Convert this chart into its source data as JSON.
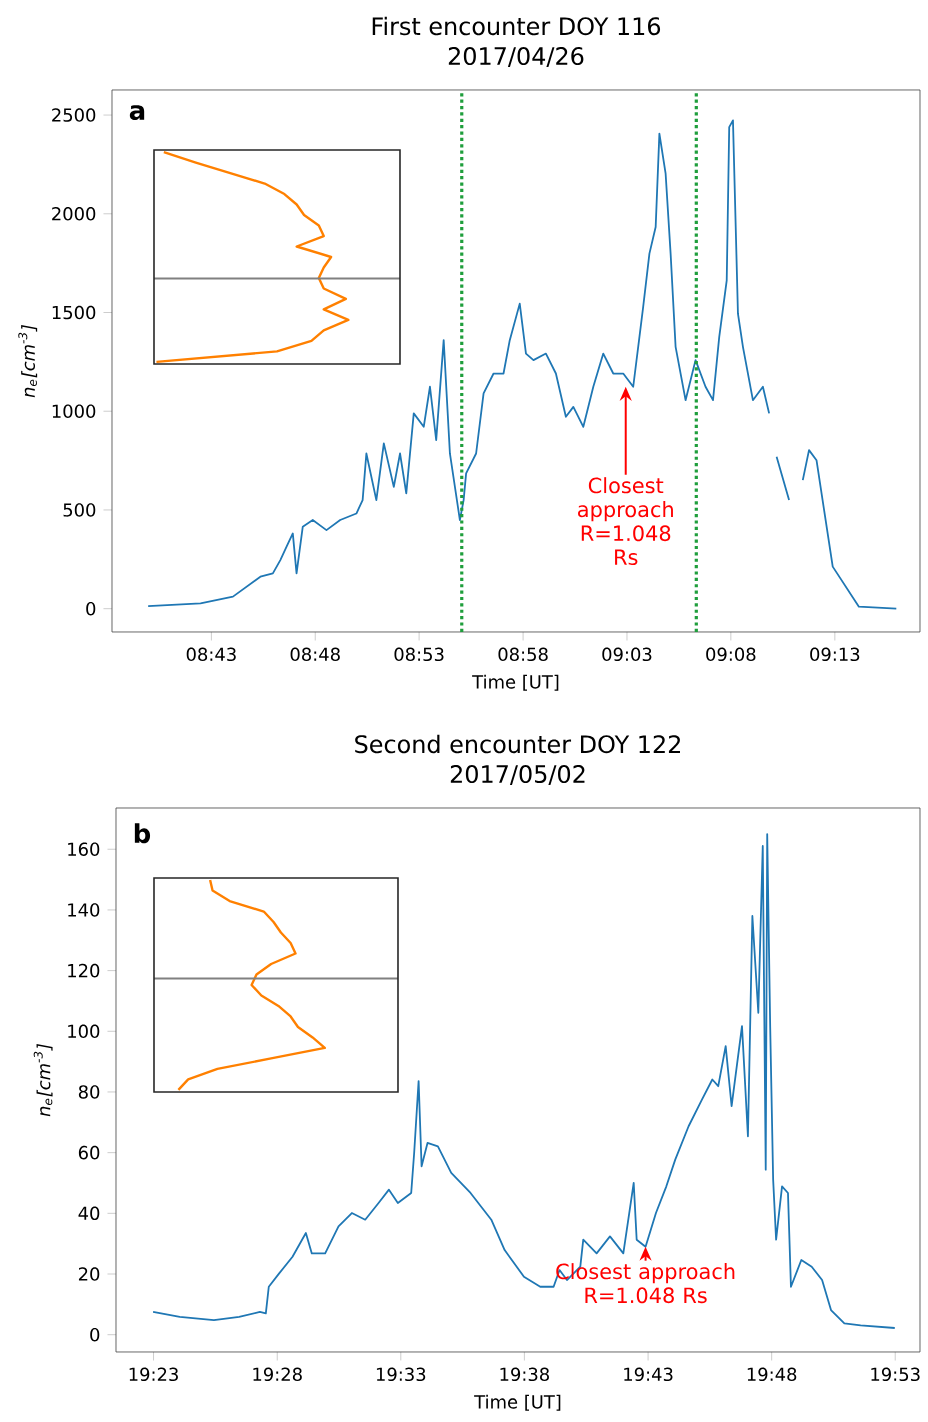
{
  "chart_data": [
    {
      "type": "line",
      "title": "First encounter DOY 116",
      "subtitle": "2017/04/26",
      "xlabel": "Time [UT]",
      "ylabel": "n$_{e}$[cm$^{-3}$]",
      "color": "#1f77b4",
      "annotations": [
        "a",
        {
          "text": "Closest approach R=1.048 Rs",
          "x": 9.049,
          "y": 1124
        }
      ],
      "x": [
        8.666,
        8.708,
        8.734,
        8.756,
        8.766,
        8.772,
        8.777,
        8.782,
        8.785,
        8.79,
        8.798,
        8.809,
        8.82,
        8.833,
        8.838,
        8.841,
        8.849,
        8.855,
        8.863,
        8.868,
        8.873,
        8.879,
        8.887,
        8.892,
        8.897,
        8.903,
        8.908,
        8.916,
        8.919,
        8.921,
        8.929,
        8.935,
        8.943,
        8.951,
        8.956,
        8.964,
        8.969,
        8.975,
        8.985,
        8.993,
        9.001,
        9.007,
        9.015,
        9.023,
        9.031,
        9.039,
        9.047,
        9.055,
        9.059,
        9.063,
        9.068,
        9.073,
        9.076,
        9.081,
        9.085,
        9.089,
        9.097,
        9.105,
        9.113,
        9.119,
        9.124,
        9.13,
        9.132,
        9.135,
        9.139,
        9.143,
        9.151,
        9.159,
        9.164,
        9.166,
        9.17,
        9.18,
        9.183,
        9.191,
        9.196,
        9.202,
        9.215,
        9.236,
        9.266
      ],
      "values": [
        13,
        27,
        61,
        162,
        179,
        246,
        314,
        381,
        179,
        415,
        449,
        398,
        449,
        482,
        550,
        786,
        550,
        837,
        617,
        786,
        584,
        989,
        921,
        1124,
        854,
        1360,
        786,
        449,
        550,
        685,
        786,
        1090,
        1191,
        1191,
        1360,
        1545,
        1292,
        1259,
        1292,
        1191,
        972,
        1022,
        921,
        1124,
        1292,
        1191,
        1191,
        1124,
        1326,
        1528,
        1798,
        1933,
        2406,
        2203,
        1798,
        1326,
        1056,
        1259,
        1124,
        1056,
        1377,
        1663,
        2439,
        2473,
        1494,
        1326,
        1056,
        1124,
        989,
        null,
        769,
        550,
        null,
        651,
        803,
        752,
        213,
        10,
        0
      ],
      "xlim": [
        8.637,
        9.285
      ],
      "ylim": [
        -118,
        2627
      ],
      "xticks": [
        {
          "value": 8.7167,
          "label": "08:43"
        },
        {
          "value": 8.8,
          "label": "08:48"
        },
        {
          "value": 8.8833,
          "label": "08:53"
        },
        {
          "value": 8.9667,
          "label": "08:58"
        },
        {
          "value": 9.05,
          "label": "09:03"
        },
        {
          "value": 9.1333,
          "label": "09:08"
        },
        {
          "value": 9.2167,
          "label": "09:13"
        }
      ],
      "yticks": [
        0,
        500,
        1000,
        1500,
        2000,
        2500
      ],
      "ref_lines": [
        {
          "axis": "x",
          "value": 8.9175,
          "color": "#1f9e3c",
          "line_style": "dotted"
        },
        {
          "axis": "x",
          "value": 9.1056,
          "color": "#1f9e3c",
          "line_style": "dotted"
        }
      ]
    },
    {
      "type": "line",
      "title": "Second encounter DOY 122",
      "subtitle": "2017/05/02",
      "xlabel": "Time [UT]",
      "ylabel": "n$_{e}$[cm$^{-3}$]",
      "color": "#1f77b4",
      "annotations": [
        "b",
        {
          "text": "Closest approach R=1.048 Rs",
          "x": 19.715,
          "y": 29
        }
      ],
      "x": [
        19.383,
        19.401,
        19.424,
        19.441,
        19.455,
        19.459,
        19.461,
        19.468,
        19.477,
        19.486,
        19.49,
        19.499,
        19.508,
        19.517,
        19.526,
        19.535,
        19.542,
        19.548,
        19.557,
        19.559,
        19.562,
        19.564,
        19.568,
        19.575,
        19.584,
        19.597,
        19.611,
        19.62,
        19.633,
        19.644,
        19.653,
        19.657,
        19.662,
        19.671,
        19.673,
        19.682,
        19.691,
        19.7,
        19.707,
        19.709,
        19.715,
        19.722,
        19.729,
        19.735,
        19.744,
        19.753,
        19.76,
        19.764,
        19.769,
        19.773,
        19.78,
        19.784,
        19.787,
        19.791,
        19.794,
        19.796,
        19.797,
        19.799,
        19.801,
        19.803,
        19.807,
        19.811,
        19.813,
        19.82,
        19.827,
        19.834,
        19.84,
        19.849,
        19.86,
        19.883
      ],
      "values": [
        7.5,
        5.9,
        4.8,
        5.9,
        7.5,
        7.0,
        15.8,
        20.2,
        25.7,
        33.5,
        26.8,
        26.8,
        35.7,
        40.1,
        37.9,
        43.4,
        47.8,
        43.4,
        46.7,
        59.9,
        83.6,
        55.5,
        63.2,
        62.1,
        53.3,
        46.7,
        37.9,
        27.9,
        19.1,
        15.8,
        15.8,
        21.3,
        18.0,
        22.4,
        31.3,
        26.8,
        32.4,
        26.8,
        50.0,
        31.3,
        29.0,
        40.1,
        48.9,
        57.7,
        68.7,
        77.5,
        84.1,
        81.9,
        95.1,
        75.3,
        101.7,
        65.4,
        138.0,
        106.1,
        161.1,
        54.4,
        165.0,
        101.7,
        51.1,
        31.3,
        48.9,
        46.7,
        15.8,
        24.6,
        22.4,
        18.0,
        8.1,
        3.7,
        3.1,
        2.2
      ],
      "xlim": [
        19.358,
        19.9
      ],
      "ylim": [
        -5.7,
        173.6
      ],
      "xticks": [
        {
          "value": 19.3833,
          "label": "19:23"
        },
        {
          "value": 19.4667,
          "label": "19:28"
        },
        {
          "value": 19.55,
          "label": "19:33"
        },
        {
          "value": 19.6333,
          "label": "19:38"
        },
        {
          "value": 19.7167,
          "label": "19:43"
        },
        {
          "value": 19.8,
          "label": "19:48"
        },
        {
          "value": 19.8833,
          "label": "19:53"
        }
      ],
      "yticks": [
        0,
        20,
        40,
        60,
        80,
        100,
        120,
        140,
        160
      ]
    }
  ]
}
